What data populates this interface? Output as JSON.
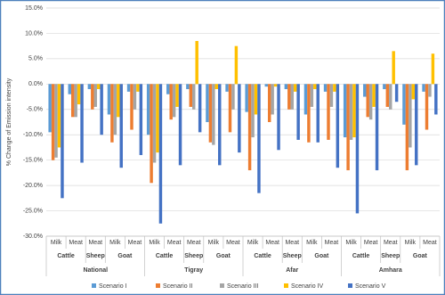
{
  "chart_data": {
    "type": "bar",
    "ylabel": "% Change of Emission intensity",
    "groups": [
      {
        "region": "National",
        "species": [
          {
            "name": "Cattle",
            "products": [
              "Milk",
              "Meat"
            ]
          },
          {
            "name": "Sheep",
            "products": [
              "Meat"
            ]
          },
          {
            "name": "Goat",
            "products": [
              "Milk",
              "Meat"
            ]
          }
        ]
      },
      {
        "region": "Tigray",
        "species": [
          {
            "name": "Cattle",
            "products": [
              "Milk",
              "Meat"
            ]
          },
          {
            "name": "Sheep",
            "products": [
              "Meat"
            ]
          },
          {
            "name": "Goat",
            "products": [
              "Milk",
              "Meat"
            ]
          }
        ]
      },
      {
        "region": "Afar",
        "species": [
          {
            "name": "Cattle",
            "products": [
              "Milk",
              "Meat"
            ]
          },
          {
            "name": "Sheep",
            "products": [
              "Meat"
            ]
          },
          {
            "name": "Goat",
            "products": [
              "Milk",
              "Meat"
            ]
          }
        ]
      },
      {
        "region": "Amhara",
        "species": [
          {
            "name": "Cattle",
            "products": [
              "Milk",
              "Meat"
            ]
          },
          {
            "name": "Sheep",
            "products": [
              "Meat"
            ]
          },
          {
            "name": "Goat",
            "products": [
              "Milk",
              "Meat"
            ]
          }
        ]
      }
    ],
    "series": [
      {
        "name": "Scenario I",
        "color": "#5b9bd5",
        "values": [
          -9.5,
          -2,
          -1,
          -6,
          -1.5,
          -10,
          -2,
          -1,
          -7.5,
          -1.5,
          -5.5,
          -0.5,
          -1,
          -6,
          -1.5,
          -10.5,
          -2.5,
          -1,
          -8,
          -1.5
        ]
      },
      {
        "name": "Scenario II",
        "color": "#ed7d31",
        "values": [
          -15,
          -6.5,
          -5,
          -11.5,
          -9,
          -19.5,
          -7,
          -4.5,
          -11.5,
          -9.5,
          -17,
          -7.5,
          -5,
          -11.5,
          -11,
          -17,
          -6.5,
          -4.5,
          -17,
          -9
        ]
      },
      {
        "name": "Scenario III",
        "color": "#a5a5a5",
        "values": [
          -14.5,
          -6.5,
          -4.5,
          -10,
          -5,
          -15.5,
          -6.5,
          -5,
          -12,
          -5,
          -10.5,
          -6,
          -5,
          -4.5,
          -4.5,
          -11,
          -7,
          -5,
          -12.5,
          -2.5
        ]
      },
      {
        "name": "Scenario IV",
        "color": "#ffc000",
        "values": [
          -12.5,
          -4,
          -1,
          -6.5,
          -1.5,
          -13.5,
          -4.5,
          8.5,
          -1,
          7.5,
          -6,
          -0.5,
          -1.5,
          -1,
          -1.5,
          -10.5,
          -4.5,
          6.5,
          -3,
          6
        ]
      },
      {
        "name": "Scenario V",
        "color": "#4472c4",
        "values": [
          -22.5,
          -15.5,
          -10,
          -16.5,
          -14,
          -27.5,
          -16,
          -9.5,
          -16,
          -13.5,
          -21.5,
          -13,
          -11,
          -11.5,
          -16.5,
          -25.5,
          -17,
          -3.5,
          -16,
          -6
        ]
      }
    ],
    "ylim": [
      -30,
      15
    ],
    "yticks": [
      {
        "value": -30,
        "label": "-30.0%"
      },
      {
        "value": -25,
        "label": "-25.0%"
      },
      {
        "value": -20,
        "label": "-20.0%"
      },
      {
        "value": -15,
        "label": "-15.0%"
      },
      {
        "value": -10,
        "label": "-10.0%"
      },
      {
        "value": -5,
        "label": "-5.0%"
      },
      {
        "value": 0,
        "label": "0.0%"
      },
      {
        "value": 5,
        "label": "5.0%"
      },
      {
        "value": 10,
        "label": "10.0%"
      },
      {
        "value": 15,
        "label": "15.0%"
      }
    ],
    "grid": true,
    "legend": "bottom"
  }
}
